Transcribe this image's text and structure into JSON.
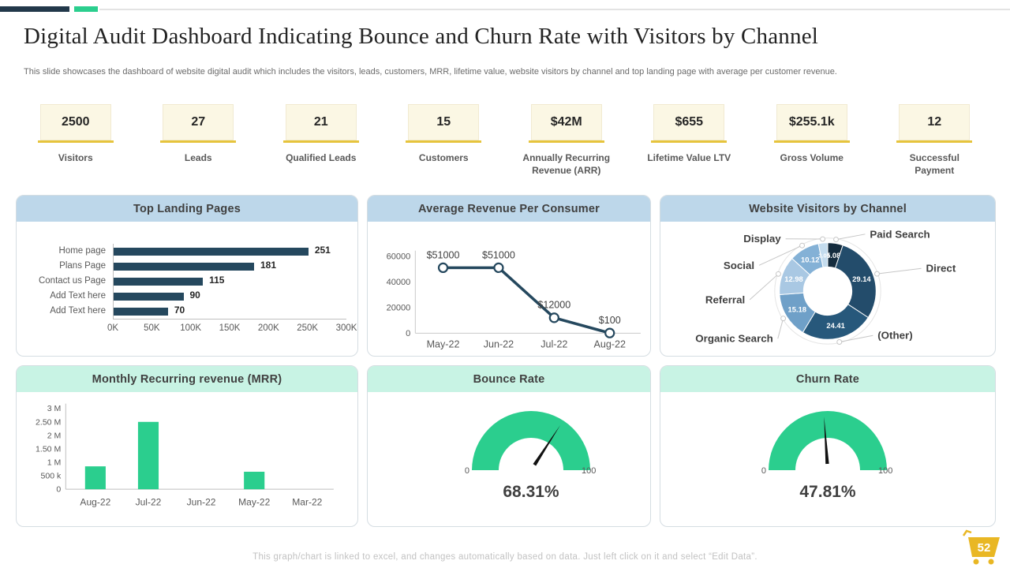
{
  "slide": {
    "title": "Digital Audit Dashboard Indicating Bounce and Churn Rate with Visitors by Channel",
    "subtitle": "This slide showcases the dashboard of website digital audit which includes the visitors, leads, customers, MRR, lifetime value, website visitors by channel and top landing page with average per customer revenue.",
    "footer_note": "This graph/chart is linked to excel, and changes automatically based on data. Just left click on it and select “Edit Data”.",
    "page_number": "52",
    "accent_navy": "#22384A",
    "accent_green": "#2BCE8E",
    "kpi_underline_color": "#E6C43D"
  },
  "kpis": [
    {
      "value": "2500",
      "label": "Visitors"
    },
    {
      "value": "27",
      "label": "Leads"
    },
    {
      "value": "21",
      "label": "Qualified Leads"
    },
    {
      "value": "15",
      "label": "Customers"
    },
    {
      "value": "$42M",
      "label": "Annually Recurring Revenue (ARR)"
    },
    {
      "value": "$655",
      "label": "Lifetime Value LTV"
    },
    {
      "value": "$255.1k",
      "label": "Gross Volume"
    },
    {
      "value": "12",
      "label": "Successful Payment"
    }
  ],
  "chart_data": [
    {
      "type": "bar",
      "orientation": "horizontal",
      "title": "Top Landing Pages",
      "header_color": "#BDD7EA",
      "categories": [
        "Home page",
        "Plans Page",
        "Contact us Page",
        "Add Text here",
        "Add Text here"
      ],
      "values": [
        251,
        181,
        115,
        90,
        70
      ],
      "value_labels": [
        "251",
        "181",
        "115",
        "90",
        "70"
      ],
      "xticks": [
        "0K",
        "50K",
        "100K",
        "150K",
        "200K",
        "250K",
        "300K"
      ],
      "xlim": [
        0,
        300
      ],
      "bar_color": "#25485E"
    },
    {
      "type": "line",
      "title": "Average Revenue Per Consumer",
      "header_color": "#BDD7EA",
      "x": [
        "May-22",
        "Jun-22",
        "Jul-22",
        "Aug-22"
      ],
      "values": [
        51000,
        51000,
        12000,
        100
      ],
      "point_labels": [
        "$51000",
        "$51000",
        "$12000",
        "$100"
      ],
      "yticks": [
        "0",
        "20000",
        "40000",
        "60000"
      ],
      "ylim": [
        0,
        60000
      ],
      "line_color": "#25485E"
    },
    {
      "type": "pie",
      "title": "Website Visitors by Channel",
      "header_color": "#BDD7EA",
      "slices": [
        {
          "label": "Paid Search",
          "value": 5.08,
          "color": "#152C3E"
        },
        {
          "label": "Direct",
          "value": 29.14,
          "color": "#234C6B"
        },
        {
          "label": "(Other)",
          "value": 24.41,
          "color": "#27587B"
        },
        {
          "label": "Organic Search",
          "value": 15.18,
          "color": "#6FA0C8"
        },
        {
          "label": "Referral",
          "value": 12.98,
          "color": "#A9C8E3"
        },
        {
          "label": "Social",
          "value": 10.12,
          "color": "#84B1D6"
        },
        {
          "label": "Display",
          "value": 3.09,
          "color": "#C4DCEE"
        }
      ]
    },
    {
      "type": "bar",
      "orientation": "vertical",
      "title": "Monthly Recurring revenue (MRR)",
      "header_color": "#C8F3E4",
      "categories": [
        "Aug-22",
        "Jul-22",
        "Jun-22",
        "May-22",
        "Mar-22"
      ],
      "values": [
        0.85,
        2.5,
        0,
        0.65,
        0
      ],
      "yticks": [
        "0",
        "500 k",
        "1 M",
        "1.50 M",
        "2 M",
        "2.50 M",
        "3 M"
      ],
      "ylim": [
        0,
        3
      ],
      "bar_color": "#2BCE8E"
    },
    {
      "type": "gauge",
      "title": "Bounce Rate",
      "header_color": "#C8F3E4",
      "value": 68.31,
      "display_value": "68.31%",
      "min_label": "0",
      "max_label": "100",
      "min": 0,
      "max": 100,
      "color": "#2BCE8E"
    },
    {
      "type": "gauge",
      "title": "Churn  Rate",
      "header_color": "#C8F3E4",
      "value": 47.81,
      "display_value": "47.81%",
      "min_label": "0",
      "max_label": "100",
      "min": 0,
      "max": 100,
      "color": "#2BCE8E"
    }
  ]
}
